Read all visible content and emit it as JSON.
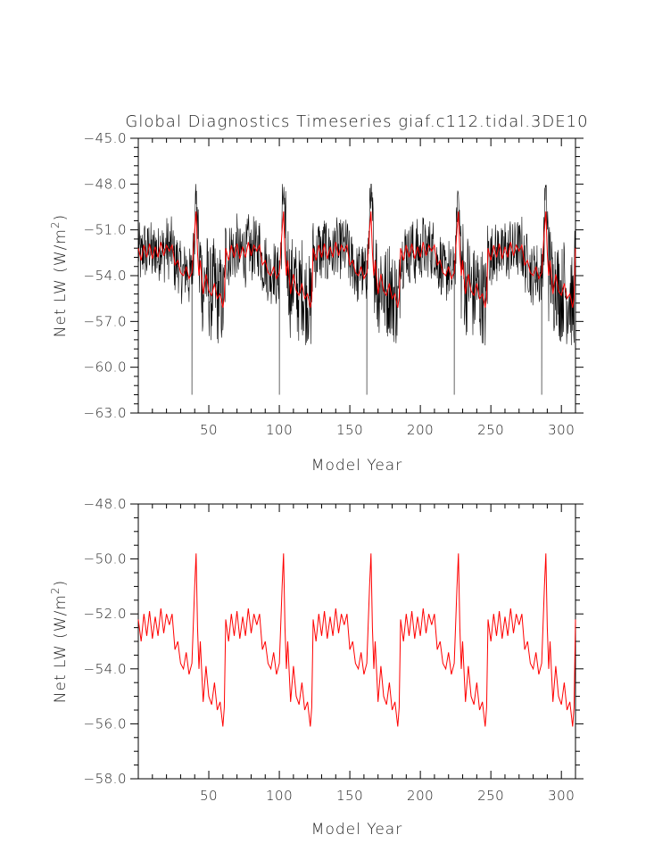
{
  "chart_data": [
    {
      "type": "line",
      "title": "Global Diagnostics Timeseries giaf.c112.tidal.3DE10",
      "xlabel": "Model Year",
      "ylabel": "Net LW (W/m²)",
      "ylabel_base": "Net LW (W/m",
      "ylabel_sup": "2",
      "ylabel_end": ")",
      "xlim": [
        0,
        310
      ],
      "ylim": [
        -63.0,
        -45.0
      ],
      "x_ticks": [
        50,
        100,
        150,
        200,
        250,
        300
      ],
      "x_tick_labels": [
        "50",
        "100",
        "150",
        "200",
        "250",
        "300"
      ],
      "y_ticks": [
        -63.0,
        -60.0,
        -57.0,
        -54.0,
        -51.0,
        -48.0,
        -45.0
      ],
      "y_tick_labels": [
        "−63.0",
        "−60.0",
        "−57.0",
        "−54.0",
        "−51.0",
        "−48.0",
        "−45.0"
      ],
      "grid": false,
      "series": [
        {
          "color": "#000000",
          "values_note_points": "noisy monthly series, period ~62 yr",
          "cycle_anchor_x": [
            0,
            40,
            42,
            48,
            62
          ],
          "cycle_anchor_y": [
            -52.3,
            -53.6,
            -50.0,
            -54.2,
            -56.2
          ],
          "min_spikes_x": [
            38,
            100,
            162,
            224,
            286
          ],
          "min_spike_y": -61.8,
          "max_spike_y": -47.8
        },
        {
          "color": "#ff0000",
          "cycle_anchor_x": [
            0,
            40,
            42,
            48,
            62
          ],
          "cycle_anchor_y": [
            -52.3,
            -53.6,
            -50.0,
            -54.2,
            -56.0
          ]
        }
      ]
    },
    {
      "type": "line",
      "title": "",
      "xlabel": "Model Year",
      "ylabel": "Net LW (W/m²)",
      "ylabel_base": "Net LW (W/m",
      "ylabel_sup": "2",
      "ylabel_end": ")",
      "xlim": [
        0,
        310
      ],
      "ylim": [
        -58.0,
        -48.0
      ],
      "x_ticks": [
        50,
        100,
        150,
        200,
        250,
        300
      ],
      "x_tick_labels": [
        "50",
        "100",
        "150",
        "200",
        "250",
        "300"
      ],
      "y_ticks": [
        -58.0,
        -56.0,
        -54.0,
        -52.0,
        -50.0,
        -48.0
      ],
      "y_tick_labels": [
        "−58.0",
        "−56.0",
        "−54.0",
        "−52.0",
        "−50.0",
        "−48.0"
      ],
      "grid": false,
      "series": [
        {
          "color": "#ff0000",
          "cycle_period": 62,
          "cycle_x": [
            0,
            2,
            4,
            6,
            8,
            10,
            12,
            14,
            16,
            18,
            20,
            22,
            24,
            26,
            28,
            30,
            32,
            34,
            36,
            38,
            40,
            41,
            42,
            43,
            44,
            46,
            48,
            50,
            52,
            54,
            56,
            58,
            60,
            61
          ],
          "cycle_y": [
            -52.2,
            -53.0,
            -52.0,
            -52.8,
            -51.9,
            -52.9,
            -52.1,
            -52.8,
            -51.8,
            -52.7,
            -52.0,
            -52.4,
            -52.0,
            -53.3,
            -53.0,
            -53.8,
            -54.0,
            -53.4,
            -54.2,
            -53.8,
            -51.0,
            -49.8,
            -52.5,
            -54.0,
            -53.0,
            -55.2,
            -53.9,
            -55.0,
            -55.3,
            -54.5,
            -55.5,
            -55.2,
            -56.1,
            -55.4
          ]
        }
      ]
    }
  ]
}
